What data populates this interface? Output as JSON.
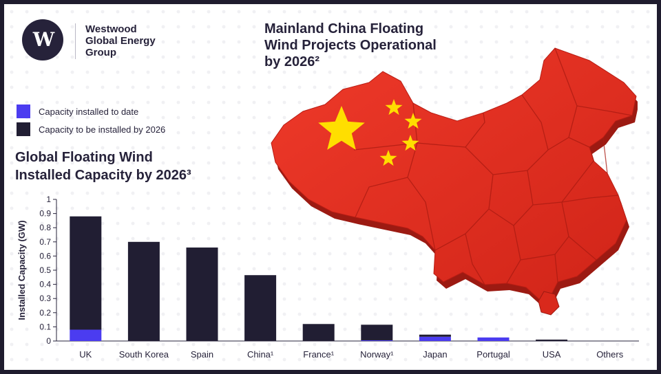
{
  "brand": {
    "logo_icon": "westwood-w-logo",
    "name_lines": [
      "Westwood",
      "Global Energy",
      "Group"
    ]
  },
  "map": {
    "title_lines": [
      "Mainland China Floating",
      "Wind Projects Operational",
      "by 2026²"
    ],
    "graphic": "china-flag-map",
    "colors": {
      "red": "#e32b1f",
      "star": "#ffde00"
    }
  },
  "legend": {
    "items": [
      {
        "label": "Capacity installed to date",
        "color": "#4b3cf0"
      },
      {
        "label": "Capacity to be installed by 2026",
        "color": "#211e33"
      }
    ]
  },
  "chart_title_lines": [
    "Global Floating Wind",
    "Installed Capacity by 2026³"
  ],
  "chart_data": {
    "type": "bar",
    "stacked": true,
    "categories": [
      "UK",
      "South Korea",
      "Spain",
      "China¹",
      "France¹",
      "Norway¹",
      "Japan",
      "Portugal",
      "USA",
      "Others"
    ],
    "series": [
      {
        "name": "Capacity installed to date",
        "color": "#4b3cf0",
        "values": [
          0.08,
          0,
          0,
          0,
          0,
          0.005,
          0.03,
          0.025,
          0,
          0
        ]
      },
      {
        "name": "Capacity to be installed by 2026",
        "color": "#211e33",
        "values": [
          0.8,
          0.7,
          0.66,
          0.465,
          0.12,
          0.11,
          0.015,
          0,
          0.01,
          0
        ]
      }
    ],
    "title": "Global Floating Wind Installed Capacity by 2026³",
    "xlabel": "",
    "ylabel": "Installed Capacity (GW)",
    "ylim": [
      0,
      1
    ],
    "yticks": [
      "0",
      "0.1",
      "0.2",
      "0.3",
      "0.4",
      "0.5",
      "0.6",
      "0.7",
      "0.8",
      "0.9",
      "1"
    ],
    "grid": false,
    "legend_position": "top-left"
  }
}
